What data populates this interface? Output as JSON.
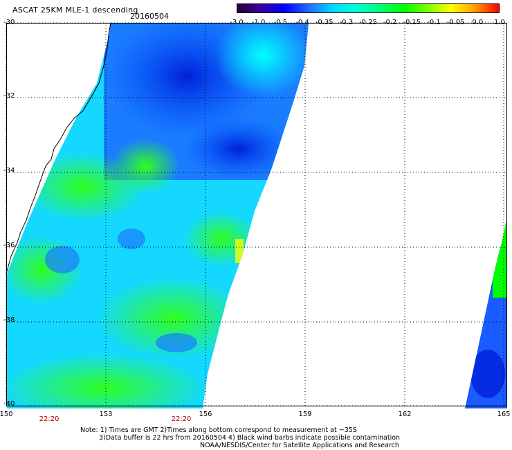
{
  "header": {
    "title": "ASCAT 25KM MLE-1 descending",
    "date": "20160504"
  },
  "colorbar": {
    "labels": [
      "-3.0",
      "-1.0",
      "-0.5",
      "-0.4",
      "-0.35",
      "-0.3",
      "-0.25",
      "-0.2",
      "-0.15",
      "-0.1",
      "-0.05",
      "0.0",
      "1.0"
    ],
    "colors": [
      "#2b0033",
      "#3a00a0",
      "#0000ff",
      "#1e6bff",
      "#00d8ff",
      "#00ffd8",
      "#00ff7a",
      "#00ff00",
      "#7cff00",
      "#ffff00",
      "#ff9c00",
      "#ff0000"
    ]
  },
  "map": {
    "lat_labels": [
      "-30",
      "-32",
      "-34",
      "-36",
      "-38",
      "-40"
    ],
    "lon_labels": [
      "150",
      "153",
      "156",
      "159",
      "162",
      "165"
    ],
    "time_labels": [
      "22:20",
      "22:20"
    ]
  },
  "notes": {
    "line1": "Note: 1) Times are GMT 2)Times along bottom correspond to measurement at ~35S",
    "line2": "3)Data buffer is 22 hrs from 20160504 4) Black wind barbs indicate possible contamination",
    "line3": "NOAA/NESDIS/Center for Satellite Applications and Research"
  }
}
